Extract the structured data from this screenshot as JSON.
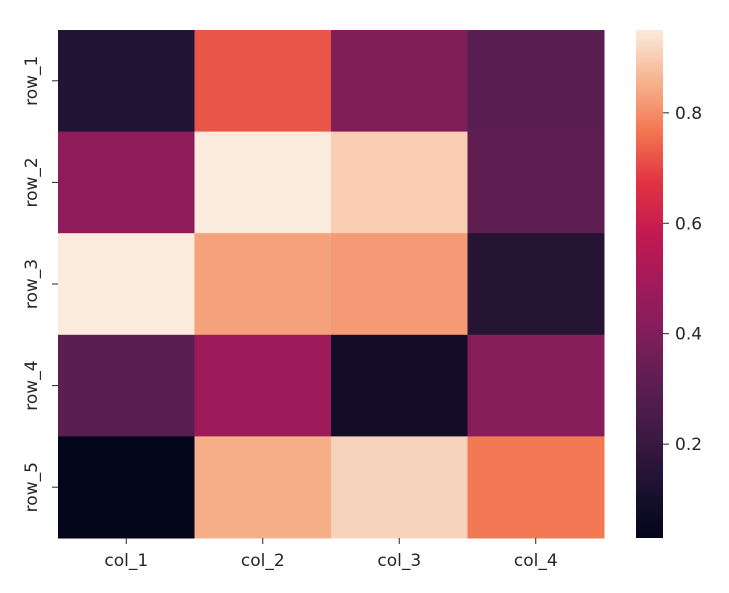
{
  "chart_data": {
    "type": "heatmap",
    "title": "",
    "xlabel": "",
    "ylabel": "",
    "columns": [
      "col_1",
      "col_2",
      "col_3",
      "col_4"
    ],
    "rows": [
      "row_1",
      "row_2",
      "row_3",
      "row_4",
      "row_5"
    ],
    "values": [
      [
        0.14,
        0.72,
        0.4,
        0.3
      ],
      [
        0.44,
        0.95,
        0.9,
        0.31
      ],
      [
        0.95,
        0.83,
        0.82,
        0.15
      ],
      [
        0.3,
        0.48,
        0.09,
        0.42
      ],
      [
        0.03,
        0.85,
        0.91,
        0.77
      ]
    ],
    "vmin": 0.03,
    "vmax": 0.95,
    "colormap": "rocket",
    "colorbar_ticks": [
      "0.2",
      "0.4",
      "0.6",
      "0.8"
    ],
    "colorbar_values": [
      0.2,
      0.4,
      0.6,
      0.8
    ],
    "grid": false
  }
}
